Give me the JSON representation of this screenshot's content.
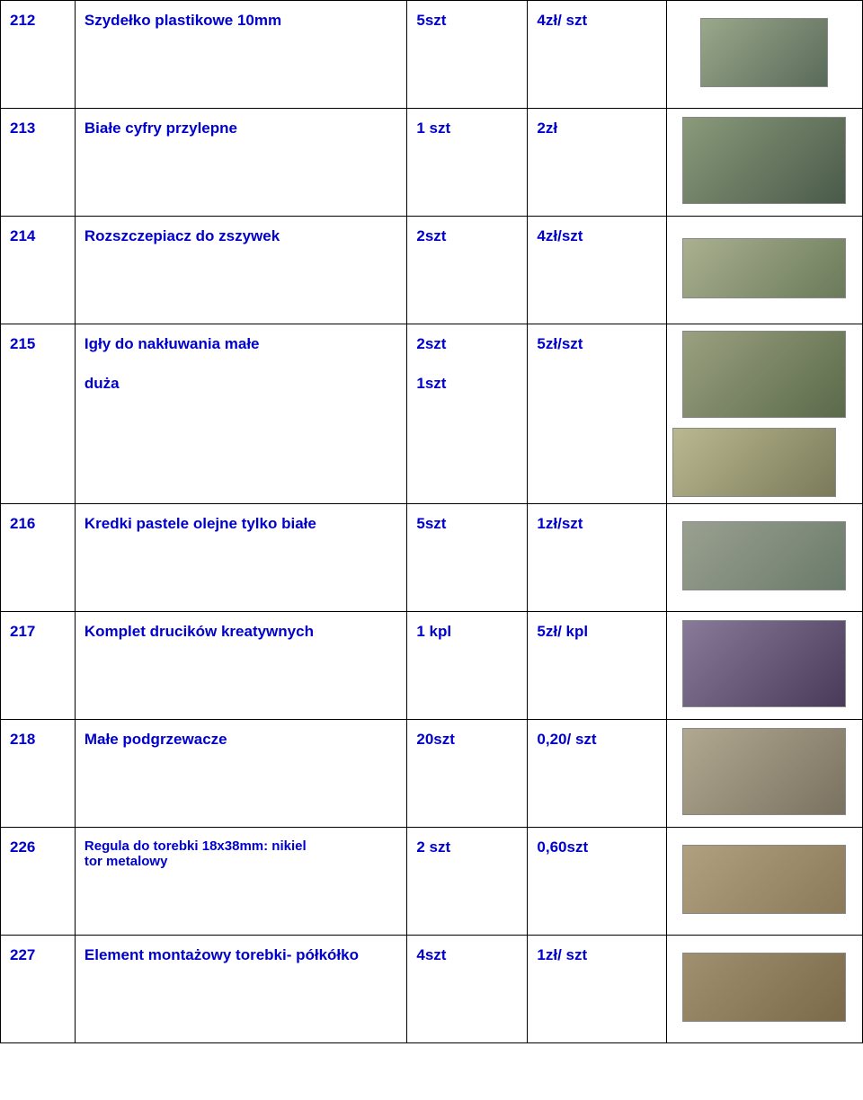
{
  "rows": [
    {
      "num": "212",
      "desc": "Szydełko plastikowe 10mm",
      "desc2": "",
      "qty": "5szt",
      "qty2": "",
      "price": "4zł/ szt",
      "small": false,
      "imgClass": "ph-0",
      "img2": false,
      "tall": false
    },
    {
      "num": "213",
      "desc": "Białe cyfry przylepne",
      "desc2": "",
      "qty": "1 szt",
      "qty2": "",
      "price": "2zł",
      "small": false,
      "imgClass": "ph-1",
      "img2": false,
      "tall": false
    },
    {
      "num": "214",
      "desc": "Rozszczepiacz do zszywek",
      "desc2": "",
      "qty": "2szt",
      "qty2": "",
      "price": "4zł/szt",
      "small": false,
      "imgClass": "ph-2",
      "img2": false,
      "tall": false
    },
    {
      "num": "215",
      "desc": "Igły do nakłuwania małe",
      "desc2": "duża",
      "qty": "2szt",
      "qty2": "1szt",
      "price": "5zł/szt",
      "small": false,
      "imgClass": "ph-3",
      "img2": true,
      "tall": true
    },
    {
      "num": "216",
      "desc": "Kredki pastele olejne tylko białe",
      "desc2": "",
      "qty": "5szt",
      "qty2": "",
      "price": "1zł/szt",
      "small": false,
      "imgClass": "ph-4",
      "img2": false,
      "tall": false
    },
    {
      "num": "217",
      "desc": "Komplet drucików kreatywnych",
      "desc2": "",
      "qty": "1 kpl",
      "qty2": "",
      "price": "5zł/ kpl",
      "small": false,
      "imgClass": "ph-5",
      "img2": false,
      "tall": false
    },
    {
      "num": "218",
      "desc": "Małe podgrzewacze",
      "desc2": "",
      "qty": "20szt",
      "qty2": "",
      "price": "0,20/ szt",
      "small": false,
      "imgClass": "ph-6",
      "img2": false,
      "tall": false
    },
    {
      "num": "226",
      "desc": "Regula do torebki 18x38mm: nikiel",
      "desc2": "tor metalowy",
      "qty": "2 szt",
      "qty2": "",
      "price": "0,60szt",
      "small": true,
      "imgClass": "ph-7",
      "img2": false,
      "tall": false
    },
    {
      "num": "227",
      "desc": "Element montażowy torebki- półkółko",
      "desc2": "",
      "qty": "4szt",
      "qty2": "",
      "price": "1zł/ szt",
      "small": false,
      "imgClass": "ph-8",
      "img2": false,
      "tall": false
    }
  ]
}
